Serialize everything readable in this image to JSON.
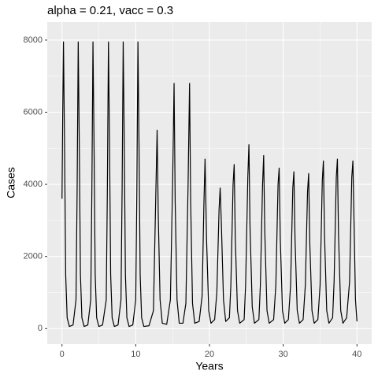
{
  "chart_data": {
    "type": "line",
    "title": "alpha = 0.21, vacc = 0.3",
    "x_label": "Years",
    "y_label": "Cases",
    "xlim": [
      -2,
      42
    ],
    "xticks": [
      0,
      10,
      20,
      30,
      40
    ],
    "ylim": [
      -430,
      8500
    ],
    "yticks": [
      0,
      2000,
      4000,
      6000,
      8000
    ],
    "grid": true,
    "minor_grid": true,
    "series": [
      {
        "color": "#000000",
        "x": [
          0,
          0.1,
          0.2,
          0.35,
          0.5,
          0.7,
          1.0,
          1.5,
          1.9,
          2.05,
          2.2,
          2.35,
          2.5,
          2.7,
          3.0,
          3.5,
          3.9,
          4.05,
          4.2,
          4.35,
          4.5,
          4.7,
          5.0,
          5.5,
          6.0,
          6.15,
          6.3,
          6.45,
          6.6,
          6.8,
          7.1,
          7.6,
          8.0,
          8.15,
          8.3,
          8.45,
          8.6,
          8.8,
          9.1,
          9.6,
          10.0,
          10.15,
          10.3,
          10.45,
          10.6,
          10.8,
          11.1,
          11.8,
          12.4,
          12.7,
          12.9,
          13.05,
          13.3,
          13.6,
          14.2,
          14.7,
          15.0,
          15.2,
          15.35,
          15.6,
          15.9,
          16.4,
          16.8,
          17.1,
          17.3,
          17.45,
          17.7,
          18.0,
          18.6,
          19.0,
          19.25,
          19.4,
          19.6,
          19.9,
          20.2,
          20.7,
          21.0,
          21.3,
          21.45,
          21.6,
          21.9,
          22.2,
          22.7,
          22.9,
          23.2,
          23.35,
          23.5,
          23.8,
          24.1,
          24.7,
          24.9,
          25.2,
          25.35,
          25.5,
          25.8,
          26.1,
          26.7,
          26.9,
          27.2,
          27.35,
          27.5,
          27.8,
          28.1,
          28.7,
          29.0,
          29.3,
          29.45,
          29.6,
          29.9,
          30.2,
          30.7,
          31.0,
          31.3,
          31.45,
          31.6,
          31.9,
          32.2,
          32.7,
          33.0,
          33.3,
          33.45,
          33.6,
          33.9,
          34.2,
          34.7,
          35.0,
          35.3,
          35.45,
          35.6,
          35.9,
          36.2,
          36.7,
          36.9,
          37.2,
          37.35,
          37.5,
          37.8,
          38.1,
          38.6,
          39.0,
          39.3,
          39.45,
          39.6,
          39.8,
          40.0
        ],
        "values": [
          3600,
          6000,
          7950,
          5000,
          1500,
          300,
          60,
          100,
          800,
          3800,
          7950,
          5000,
          1500,
          300,
          60,
          100,
          800,
          3800,
          7950,
          5000,
          1500,
          300,
          60,
          100,
          800,
          3800,
          7950,
          5000,
          1500,
          300,
          60,
          100,
          800,
          3800,
          7950,
          5000,
          1500,
          300,
          60,
          100,
          800,
          3800,
          7950,
          5000,
          1500,
          300,
          60,
          80,
          500,
          3500,
          5500,
          3200,
          800,
          150,
          120,
          800,
          4000,
          6800,
          3500,
          800,
          150,
          150,
          700,
          4000,
          6800,
          3500,
          700,
          150,
          200,
          900,
          3500,
          4700,
          2500,
          500,
          150,
          250,
          1000,
          3300,
          3900,
          3000,
          800,
          200,
          300,
          1200,
          4000,
          4550,
          2500,
          500,
          150,
          250,
          1200,
          4200,
          5100,
          2800,
          600,
          150,
          250,
          1200,
          4000,
          4800,
          2700,
          500,
          150,
          250,
          1200,
          4000,
          4450,
          2500,
          500,
          150,
          250,
          1200,
          3900,
          4350,
          2500,
          500,
          150,
          250,
          1200,
          3800,
          4300,
          2400,
          500,
          150,
          250,
          1200,
          4100,
          4650,
          2600,
          500,
          150,
          300,
          1300,
          4200,
          4700,
          2600,
          500,
          150,
          300,
          1300,
          4200,
          4650,
          3000,
          800,
          200
        ]
      }
    ]
  }
}
